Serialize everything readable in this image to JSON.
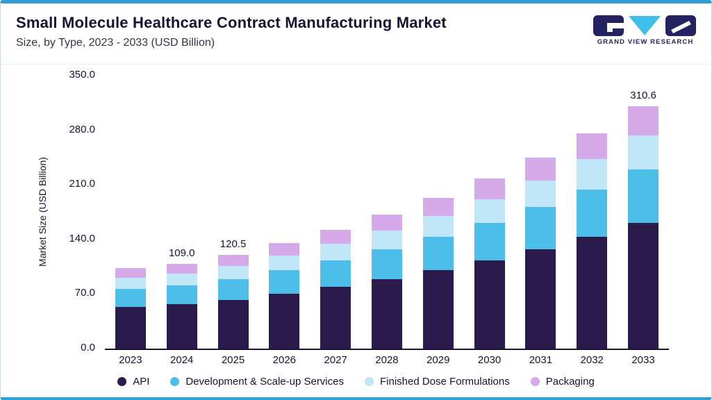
{
  "header": {
    "title": "Small Molecule Healthcare Contract Manufacturing Market",
    "subtitle": "Size, by Type, 2023 - 2033 (USD Billion)",
    "logo_text": "GRAND VIEW RESEARCH"
  },
  "colors": {
    "accent": "#2d9fd4",
    "border_color": "#c9d6e2",
    "divider": "#e6eef5",
    "title_text": "#1a1235",
    "axis": "#1a1235",
    "logo_navy": "#252262",
    "logo_cyan": "#3fc0e8",
    "series_api": "#2b1b4d",
    "series_development": "#4dbde9",
    "series_finished_dose": "#c1e6f7",
    "series_packaging": "#d6a9e8"
  },
  "chart_data": {
    "type": "bar",
    "stacked": true,
    "title": "Small Molecule Healthcare Contract Manufacturing Market Size, by Type, 2023 - 2033 (USD Billion)",
    "xlabel": "",
    "ylabel": "Market Size (USD Billion)",
    "ylim": [
      0,
      350
    ],
    "yticks": [
      0,
      70,
      140,
      210,
      280,
      350
    ],
    "grid": false,
    "legend_position": "bottom",
    "categories": [
      "2023",
      "2024",
      "2025",
      "2026",
      "2027",
      "2028",
      "2029",
      "2030",
      "2031",
      "2032",
      "2033"
    ],
    "series": [
      {
        "name": "API",
        "color": "#2b1b4d",
        "values": [
          53.6,
          56.7,
          62.7,
          70.5,
          79.4,
          89.4,
          100.6,
          113.3,
          127.5,
          143.5,
          161.5
        ]
      },
      {
        "name": "Development & Scale-up Services",
        "color": "#4dbde9",
        "values": [
          22.7,
          24.0,
          26.5,
          29.8,
          33.6,
          37.8,
          42.6,
          47.9,
          53.9,
          60.7,
          68.3
        ]
      },
      {
        "name": "Finished Dose Formulations",
        "color": "#c1e6f7",
        "values": [
          14.4,
          15.3,
          16.9,
          19.0,
          21.4,
          24.1,
          27.1,
          30.5,
          34.3,
          38.6,
          43.5
        ]
      },
      {
        "name": "Packaging",
        "color": "#d6a9e8",
        "values": [
          12.3,
          13.0,
          14.4,
          16.3,
          18.3,
          20.6,
          23.2,
          26.1,
          29.4,
          33.1,
          37.3
        ]
      }
    ],
    "totals": [
      103.0,
      109.0,
      120.5,
      135.6,
      152.7,
      171.9,
      193.5,
      217.8,
      245.1,
      275.9,
      310.6
    ],
    "annotations": [
      {
        "category": "2024",
        "label": "109.0"
      },
      {
        "category": "2025",
        "label": "120.5"
      },
      {
        "category": "2033",
        "label": "310.6"
      }
    ]
  }
}
